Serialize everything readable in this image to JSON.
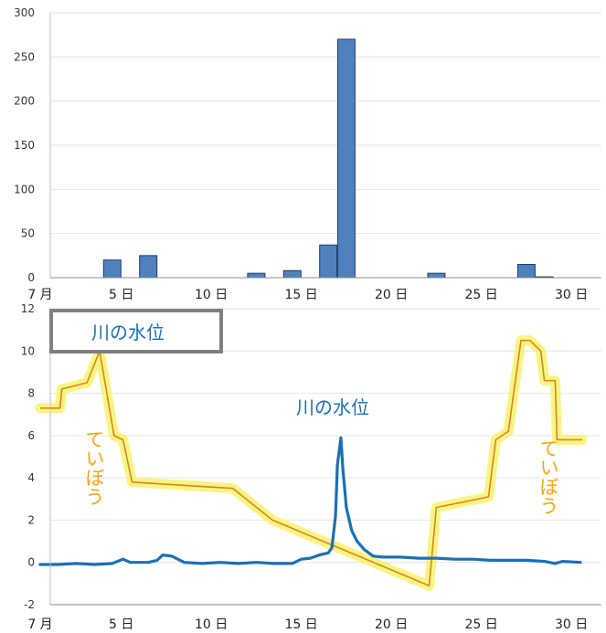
{
  "colors": {
    "bar": "#4f81bd",
    "bar_edge": "#1f3a66",
    "water": "#1b6fb5",
    "levee_line": "#d9822b",
    "levee_glow": "#f7f36a",
    "levee_text": "#f3a51c",
    "label_box": "#7f7f7f"
  },
  "chart_data": [
    {
      "type": "bar",
      "categories": [
        1,
        2,
        3,
        4,
        5,
        6,
        7,
        8,
        9,
        10,
        11,
        12,
        13,
        14,
        15,
        16,
        17,
        18,
        19,
        20,
        21,
        22,
        23,
        24,
        25,
        26,
        27,
        28,
        29,
        30,
        31
      ],
      "values": [
        0,
        0,
        0,
        0,
        20,
        0,
        25,
        0,
        0,
        0,
        0,
        0,
        5,
        0,
        8,
        0,
        37,
        270,
        0,
        0,
        0,
        0,
        5,
        0,
        0,
        0,
        0,
        15,
        1,
        0,
        0
      ],
      "ylim": [
        0,
        300
      ],
      "yticks": [
        "0",
        "50",
        "100",
        "150",
        "200",
        "250",
        "300"
      ],
      "xticks": [
        {
          "x": 1,
          "label": "7 月"
        },
        {
          "x": 5.5,
          "label": "5 日"
        },
        {
          "x": 10.5,
          "label": "10 日"
        },
        {
          "x": 15.5,
          "label": "15 日"
        },
        {
          "x": 20.5,
          "label": "20 日"
        },
        {
          "x": 25.5,
          "label": "25 日"
        },
        {
          "x": 30.5,
          "label": "30 日"
        }
      ],
      "grid": true
    },
    {
      "type": "line",
      "ylim": [
        -2,
        12
      ],
      "yticks": [
        "-2",
        "0",
        "2",
        "4",
        "6",
        "8",
        "10",
        "12"
      ],
      "xticks": [
        {
          "x": 1,
          "label": "7 月"
        },
        {
          "x": 5.5,
          "label": "5 日"
        },
        {
          "x": 10.5,
          "label": "10 日"
        },
        {
          "x": 15.5,
          "label": "15 日"
        },
        {
          "x": 20.5,
          "label": "20 日"
        },
        {
          "x": 25.5,
          "label": "25 日"
        },
        {
          "x": 30.5,
          "label": "30 日"
        }
      ],
      "grid": true,
      "legend_box": "川の水位",
      "annotations": {
        "water_label": "川の水位",
        "levee_left": "ていぼう",
        "levee_right": "ていぼう"
      },
      "series": [
        {
          "name": "川の水位",
          "x": [
            1,
            2,
            3,
            4,
            5,
            5.6,
            6,
            7,
            7.5,
            7.8,
            8.3,
            9,
            10,
            11,
            12,
            13,
            14,
            15,
            15.5,
            16,
            16.5,
            17,
            17.2,
            17.4,
            17.5,
            17.7,
            17.8,
            18,
            18.3,
            18.6,
            19,
            19.5,
            20,
            21,
            22,
            23,
            24,
            25,
            26,
            27,
            28,
            29,
            29.6,
            30,
            31
          ],
          "y": [
            -0.1,
            -0.1,
            -0.05,
            -0.1,
            -0.05,
            0.15,
            0.0,
            0.0,
            0.1,
            0.35,
            0.3,
            0.0,
            -0.05,
            0.0,
            -0.05,
            0.0,
            -0.05,
            -0.05,
            0.15,
            0.2,
            0.35,
            0.45,
            0.7,
            2.2,
            4.6,
            5.9,
            4.5,
            2.6,
            1.5,
            1.0,
            0.6,
            0.3,
            0.25,
            0.25,
            0.2,
            0.2,
            0.15,
            0.15,
            0.1,
            0.1,
            0.1,
            0.05,
            -0.05,
            0.05,
            0.0
          ]
        },
        {
          "name": "ていぼう",
          "x": [
            1,
            2.1,
            2.2,
            3.6,
            4.3,
            5.1,
            5.6,
            6.1,
            11.7,
            13.9,
            22.6,
            23.0,
            25.9,
            26.3,
            27.0,
            27.7,
            28.2,
            28.8,
            29.0,
            29.6,
            29.7,
            31.1
          ],
          "y": [
            7.3,
            7.3,
            8.2,
            8.5,
            10.0,
            6.0,
            5.8,
            3.8,
            3.5,
            2.0,
            -1.1,
            2.6,
            3.1,
            5.8,
            6.2,
            10.5,
            10.5,
            10.0,
            8.6,
            8.6,
            5.8,
            5.8
          ]
        }
      ]
    }
  ]
}
